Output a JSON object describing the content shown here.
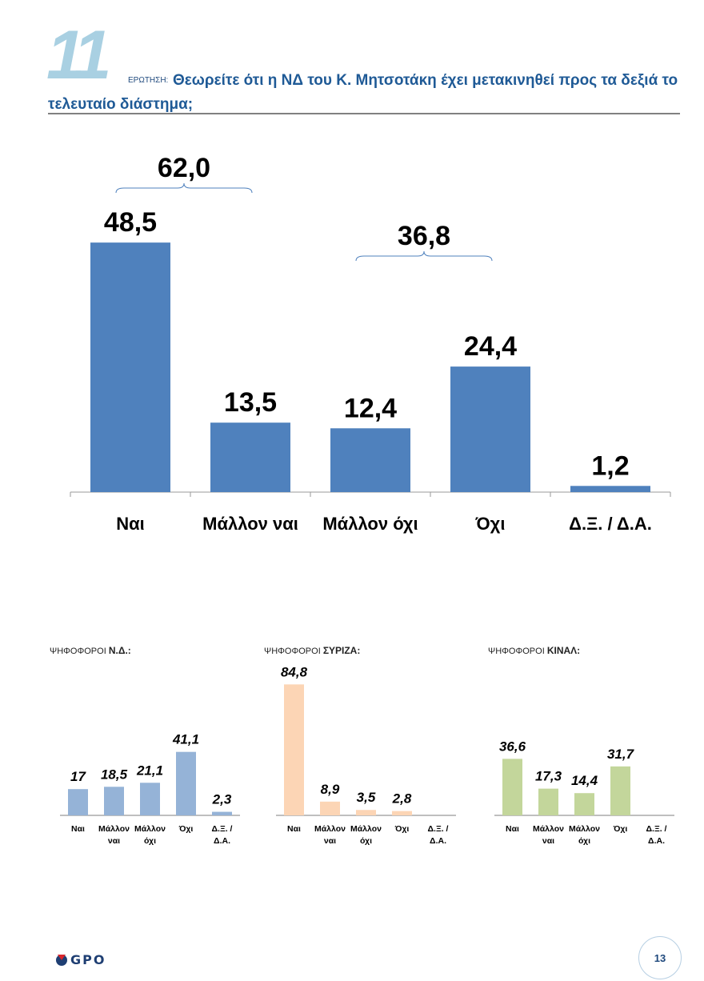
{
  "header": {
    "question_number": "11",
    "question_label": "ΕΡΩΤΗΣΗ:",
    "question_text": "Θεωρείτε ότι η ΝΔ του Κ. Μητσοτάκη έχει μετακινηθεί προς τα δεξιά το τελευταίο διάστημα;"
  },
  "chart_data": [
    {
      "type": "bar",
      "title": "",
      "categories": [
        "Ναι",
        "Μάλλον ναι",
        "Μάλλον όχι",
        "Όχι",
        "Δ.Ξ. / Δ.Α."
      ],
      "values": [
        48.5,
        13.5,
        12.4,
        24.4,
        1.2
      ],
      "value_labels": [
        "48,5",
        "13,5",
        "12,4",
        "24,4",
        "1,2"
      ],
      "groups": [
        {
          "label": "62,0",
          "from": 0,
          "to": 1
        },
        {
          "label": "36,8",
          "from": 2,
          "to": 3
        }
      ],
      "color": "#4f81bd",
      "ylim": [
        0,
        50
      ]
    },
    {
      "type": "bar",
      "title_prefix": "ΨΗΦΟΦΟΡΟΙ",
      "title": "Ν.Δ.:",
      "categories": [
        "Ναι",
        "Μάλλον ναι",
        "Μάλλον όχι",
        "Όχι",
        "Δ.Ξ. / Δ.Α."
      ],
      "values": [
        17,
        18.5,
        21.1,
        41.1,
        2.3
      ],
      "value_labels": [
        "17",
        "18,5",
        "21,1",
        "41,1",
        "2,3"
      ],
      "color": "#95b3d7"
    },
    {
      "type": "bar",
      "title_prefix": "ΨΗΦΟΦΟΡΟΙ",
      "title": "ΣΥΡΙΖΑ:",
      "categories": [
        "Ναι",
        "Μάλλον ναι",
        "Μάλλον όχι",
        "Όχι",
        "Δ.Ξ. / Δ.Α."
      ],
      "values": [
        84.8,
        8.9,
        3.5,
        2.8,
        null
      ],
      "value_labels": [
        "84,8",
        "8,9",
        "3,5",
        "2,8",
        ""
      ],
      "color": "#fcd5b5"
    },
    {
      "type": "bar",
      "title_prefix": "ΨΗΦΟΦΟΡΟΙ",
      "title": "ΚΙΝΑΛ:",
      "categories": [
        "Ναι",
        "Μάλλον ναι",
        "Μάλλον όχι",
        "Όχι",
        "Δ.Ξ. / Δ.Α."
      ],
      "values": [
        36.6,
        17.3,
        14.4,
        31.7,
        null
      ],
      "value_labels": [
        "36,6",
        "17,3",
        "14,4",
        "31,7",
        ""
      ],
      "color": "#c3d69b"
    }
  ],
  "footer": {
    "logo": "GPO",
    "page_number": "13"
  }
}
